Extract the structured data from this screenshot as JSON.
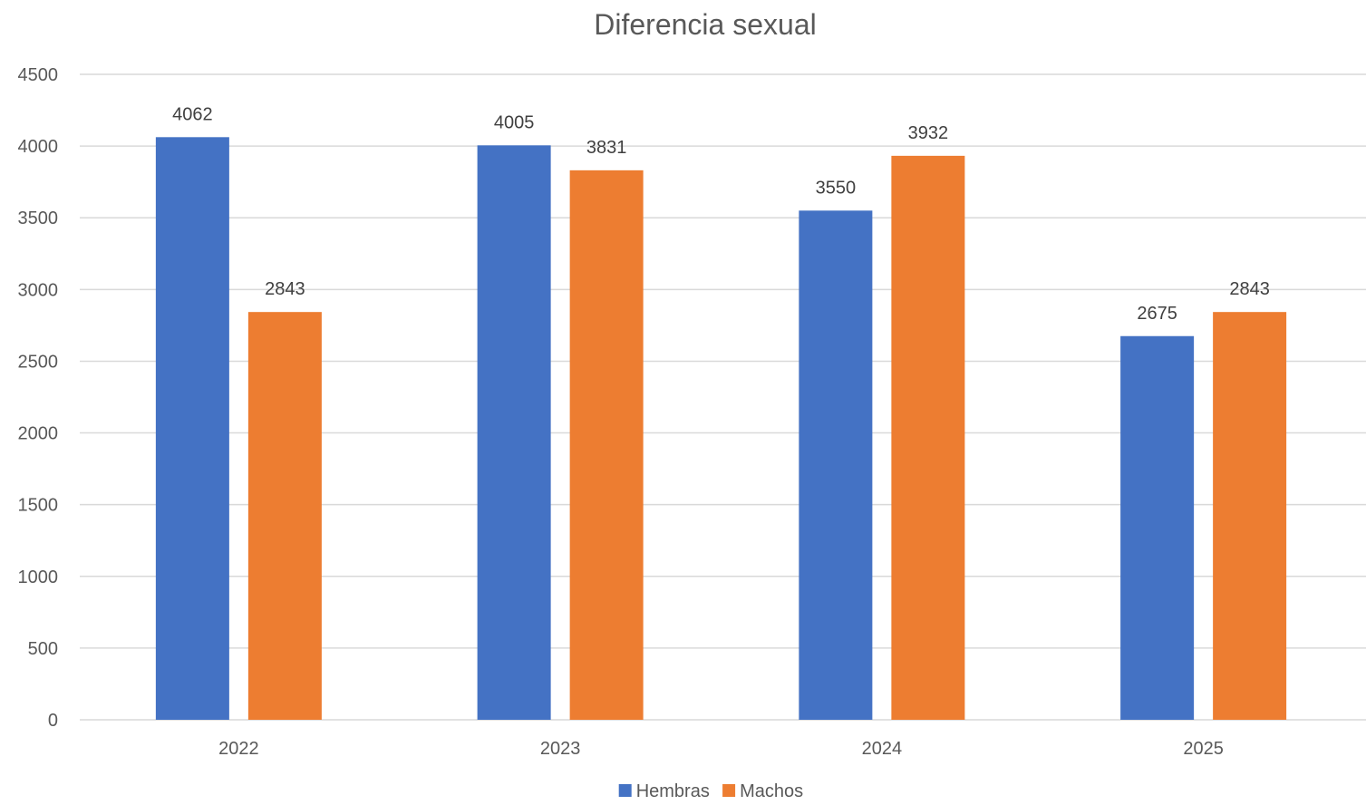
{
  "chart_data": {
    "type": "bar",
    "title": "Diferencia sexual",
    "categories": [
      "2022",
      "2023",
      "2024",
      "2025"
    ],
    "series": [
      {
        "name": "Hembras",
        "color": "#4472C4",
        "values": [
          4062,
          4005,
          3550,
          2675
        ]
      },
      {
        "name": "Machos",
        "color": "#ED7D31",
        "values": [
          2843,
          3831,
          3932,
          2843
        ]
      }
    ],
    "ylim": [
      0,
      4500
    ],
    "yticks": [
      0,
      500,
      1000,
      1500,
      2000,
      2500,
      3000,
      3500,
      4000,
      4500
    ],
    "grid": true,
    "legend_position": "bottom",
    "data_labels": true
  }
}
